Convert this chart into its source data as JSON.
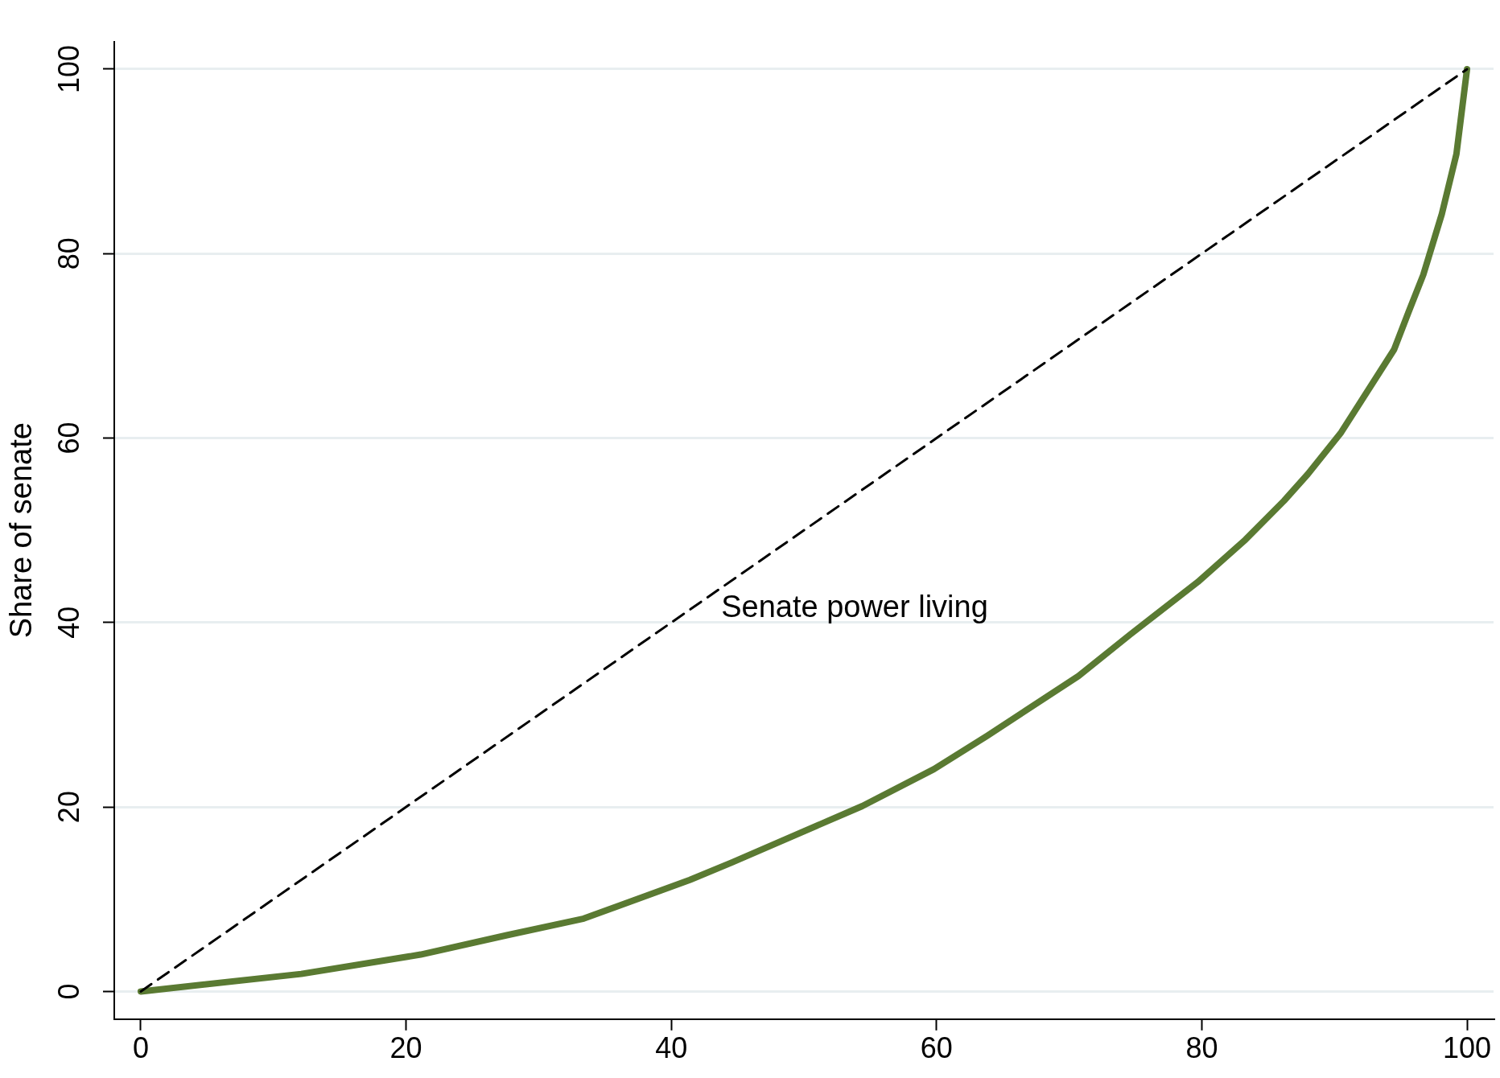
{
  "chart_data": {
    "type": "line",
    "ylabel": "Share of senate",
    "xlim": [
      -2,
      102
    ],
    "ylim": [
      -3,
      103
    ],
    "xticks": [
      0,
      20,
      40,
      60,
      80,
      100
    ],
    "yticks": [
      0,
      20,
      40,
      60,
      80,
      100
    ],
    "grid": "y",
    "legend": false,
    "marker": "none",
    "annotations": [
      "Senate power living"
    ],
    "series": [
      {
        "color": "#000000",
        "line_style": "dashed",
        "x": [
          0,
          100
        ],
        "values": [
          0,
          100
        ]
      },
      {
        "color": "#5a7a32",
        "line_style": "solid",
        "x": [
          0,
          12.1,
          21.1,
          27.6,
          33.4,
          41.4,
          44.6,
          54.4,
          59.8,
          63.8,
          70.7,
          74.6,
          79.7,
          83.3,
          86.2,
          88.0,
          90.5,
          94.5,
          95.6,
          96.7,
          98.1,
          99.2,
          100
        ],
        "values": [
          0,
          1.9,
          4.0,
          6.1,
          7.9,
          12.1,
          14.0,
          20.1,
          24.1,
          27.7,
          34.2,
          38.7,
          44.4,
          49.0,
          53.2,
          56.1,
          60.6,
          69.6,
          73.7,
          77.7,
          84.3,
          90.8,
          100
        ]
      }
    ]
  }
}
